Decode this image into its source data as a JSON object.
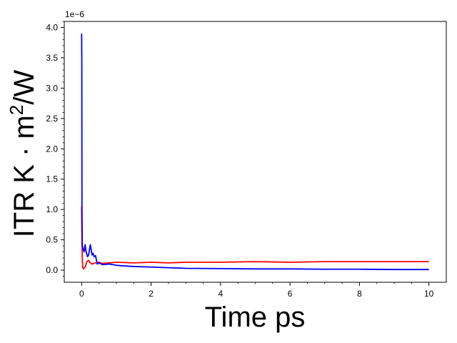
{
  "chart_data": {
    "type": "line",
    "xlabel": "Time ps",
    "ylabel_main": "ITR K · m",
    "ylabel_sup": "2",
    "ylabel_tail": "/W",
    "offset_label": "1e−6",
    "xlim": [
      -0.5,
      10.5
    ],
    "ylim": [
      -0.2,
      4.1
    ],
    "x_ticks": [
      0,
      2,
      4,
      6,
      8,
      10
    ],
    "x_tick_labels": [
      "0",
      "2",
      "4",
      "6",
      "8",
      "10"
    ],
    "y_ticks": [
      0.0,
      0.5,
      1.0,
      1.5,
      2.0,
      2.5,
      3.0,
      3.5,
      4.0
    ],
    "y_tick_labels": [
      "0.0",
      "0.5",
      "1.0",
      "1.5",
      "2.0",
      "2.5",
      "3.0",
      "3.5",
      "4.0"
    ],
    "grid": false,
    "series": [
      {
        "color": "#ff0000",
        "x": [
          0,
          0.01,
          0.02,
          0.03,
          0.05,
          0.1,
          0.15,
          0.2,
          0.25,
          0.3,
          0.4,
          0.5,
          0.6,
          0.8,
          1.0,
          1.5,
          2.0,
          2.5,
          3.0,
          4.0,
          5.0,
          6.0,
          7.0,
          8.0,
          9.0,
          10.0
        ],
        "y": [
          1.05,
          0.45,
          0.2,
          0.05,
          0.02,
          0.05,
          0.14,
          0.16,
          0.12,
          0.1,
          0.12,
          0.13,
          0.11,
          0.12,
          0.13,
          0.12,
          0.13,
          0.12,
          0.13,
          0.13,
          0.14,
          0.13,
          0.14,
          0.14,
          0.14,
          0.14
        ]
      },
      {
        "color": "#0000ff",
        "x": [
          0,
          0.005,
          0.01,
          0.02,
          0.04,
          0.07,
          0.1,
          0.13,
          0.17,
          0.2,
          0.25,
          0.3,
          0.33,
          0.36,
          0.4,
          0.45,
          0.5,
          0.6,
          0.8,
          1.0,
          1.2,
          1.5,
          2.0,
          2.5,
          3.0,
          4.0,
          5.0,
          6.0,
          7.0,
          8.0,
          9.0,
          10.0
        ],
        "y": [
          3.9,
          3.5,
          1.0,
          0.4,
          0.35,
          0.3,
          0.42,
          0.3,
          0.22,
          0.25,
          0.42,
          0.25,
          0.28,
          0.22,
          0.24,
          0.1,
          0.12,
          0.09,
          0.1,
          0.08,
          0.07,
          0.06,
          0.05,
          0.04,
          0.03,
          0.025,
          0.02,
          0.02,
          0.015,
          0.015,
          0.01,
          0.01
        ]
      }
    ]
  }
}
